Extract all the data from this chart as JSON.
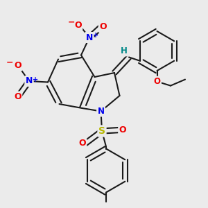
{
  "bg_color": "#ebebeb",
  "bond_color": "#1a1a1a",
  "bond_width": 1.5,
  "dbl_sep": 0.12,
  "atom_colors": {
    "N": "#0000ee",
    "O": "#ee0000",
    "S": "#b8b800",
    "H_label": "#008888",
    "C": "#1a1a1a"
  },
  "figsize": [
    3.0,
    3.0
  ],
  "dpi": 100
}
